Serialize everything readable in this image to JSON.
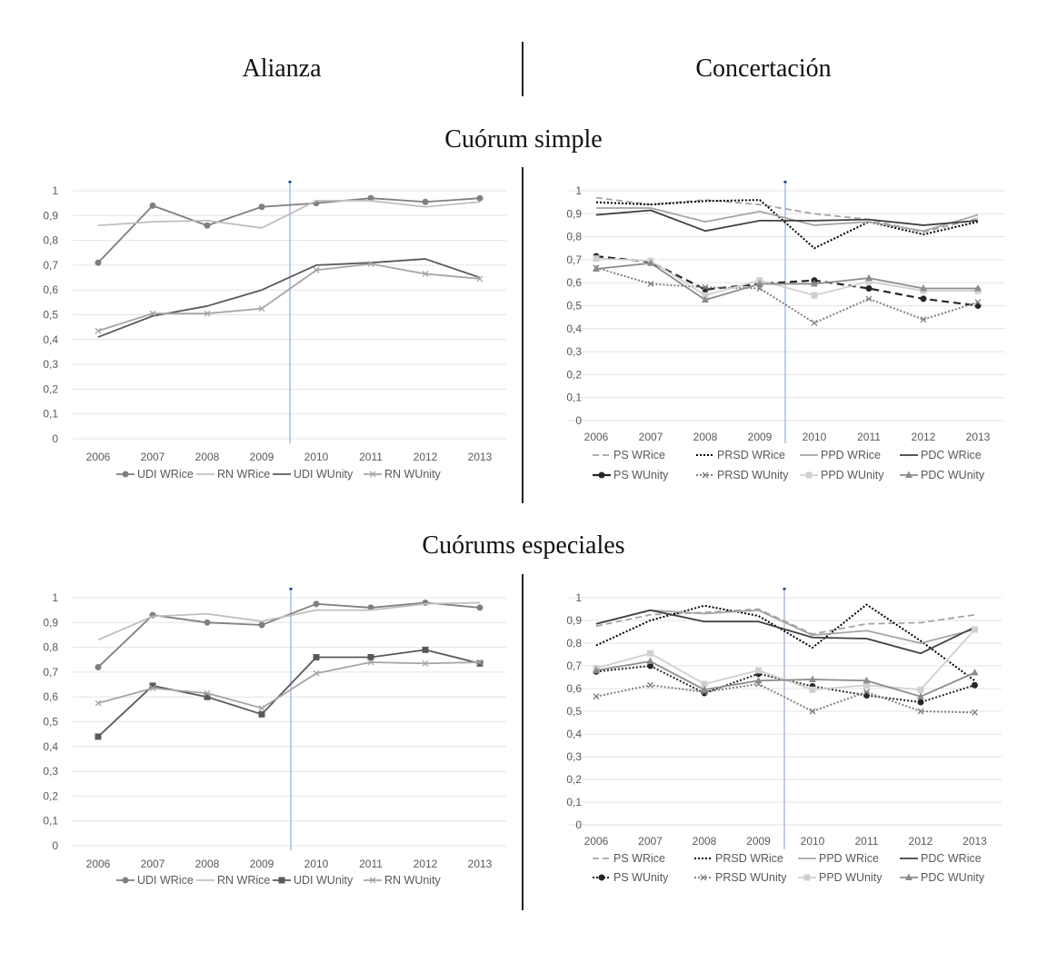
{
  "headers": {
    "left": "Alianza",
    "right": "Concertación",
    "section_top": "Cuórum simple",
    "section_bottom": "Cuórums especiales"
  },
  "chart_data": [
    {
      "id": "alianza-simple",
      "type": "line",
      "title": "Alianza — Cuórum simple",
      "xlabel": "",
      "ylabel": "",
      "categories": [
        "2006",
        "2007",
        "2008",
        "2009",
        "2010",
        "2011",
        "2012",
        "2013"
      ],
      "yticks": [
        "0",
        "0,1",
        "0,2",
        "0,3",
        "0,4",
        "0,5",
        "0,6",
        "0,7",
        "0,8",
        "0,9",
        "1"
      ],
      "ylim": [
        0,
        1
      ],
      "grid": true,
      "legend": "bottom",
      "reference_line_between": [
        "2009",
        "2010"
      ],
      "series": [
        {
          "name": "UDI WRice",
          "style": "solid",
          "color": "#7f7f7f",
          "marker": "circle",
          "values": [
            0.71,
            0.94,
            0.86,
            0.935,
            0.95,
            0.97,
            0.955,
            0.97
          ]
        },
        {
          "name": "RN WRice",
          "style": "solid",
          "color": "#bfbfbf",
          "marker": "none",
          "values": [
            0.86,
            0.875,
            0.88,
            0.85,
            0.96,
            0.96,
            0.935,
            0.955
          ]
        },
        {
          "name": "UDI WUnity",
          "style": "solid",
          "color": "#595959",
          "marker": "none",
          "values": [
            0.41,
            0.495,
            0.535,
            0.6,
            0.7,
            0.71,
            0.725,
            0.65
          ]
        },
        {
          "name": "RN WUnity",
          "style": "solid",
          "color": "#a5a5a5",
          "marker": "x",
          "values": [
            0.435,
            0.505,
            0.505,
            0.525,
            0.68,
            0.705,
            0.665,
            0.645
          ]
        }
      ]
    },
    {
      "id": "concertacion-simple",
      "type": "line",
      "title": "Concertación — Cuórum simple",
      "xlabel": "",
      "ylabel": "",
      "categories": [
        "2006",
        "2007",
        "2008",
        "2009",
        "2010",
        "2011",
        "2012",
        "2013"
      ],
      "yticks": [
        "0",
        "0,1",
        "0,2",
        "0,3",
        "0,4",
        "0,5",
        "0,6",
        "0,7",
        "0,8",
        "0,9",
        "1"
      ],
      "ylim": [
        0,
        1
      ],
      "grid": true,
      "legend": "bottom",
      "reference_line_between": [
        "2009",
        "2010"
      ],
      "series": [
        {
          "name": "PS WRice",
          "style": "dashed",
          "color": "#a5a5a5",
          "marker": "none",
          "values": [
            0.97,
            0.94,
            0.96,
            0.94,
            0.9,
            0.875,
            0.82,
            0.88
          ]
        },
        {
          "name": "PRSD WRice",
          "style": "dotted",
          "color": "#000000",
          "marker": "none",
          "values": [
            0.95,
            0.94,
            0.955,
            0.96,
            0.75,
            0.865,
            0.81,
            0.865
          ]
        },
        {
          "name": "PPD WRice",
          "style": "solid",
          "color": "#a5a5a5",
          "marker": "none",
          "values": [
            0.925,
            0.925,
            0.865,
            0.91,
            0.85,
            0.865,
            0.825,
            0.895
          ]
        },
        {
          "name": "PDC WRice",
          "style": "solid",
          "color": "#404040",
          "marker": "none",
          "values": [
            0.895,
            0.915,
            0.825,
            0.87,
            0.87,
            0.875,
            0.85,
            0.87
          ]
        },
        {
          "name": "PS WUnity",
          "style": "dashed-heavy",
          "color": "#262626",
          "marker": "circle",
          "values": [
            0.715,
            0.69,
            0.57,
            0.595,
            0.61,
            0.575,
            0.53,
            0.5
          ]
        },
        {
          "name": "PRSD WUnity",
          "style": "dotted",
          "color": "#7f7f7f",
          "marker": "x",
          "values": [
            0.665,
            0.595,
            0.58,
            0.575,
            0.425,
            0.53,
            0.44,
            0.515
          ]
        },
        {
          "name": "PPD WUnity",
          "style": "solid",
          "color": "#d0d0d0",
          "marker": "square",
          "values": [
            0.705,
            0.695,
            0.545,
            0.61,
            0.545,
            0.605,
            0.565,
            0.565
          ]
        },
        {
          "name": "PDC WUnity",
          "style": "solid",
          "color": "#8c8c8c",
          "marker": "triangle",
          "values": [
            0.66,
            0.685,
            0.525,
            0.595,
            0.595,
            0.62,
            0.575,
            0.575
          ]
        }
      ]
    },
    {
      "id": "alianza-especiales",
      "type": "line",
      "title": "Alianza — Cuórums especiales",
      "xlabel": "",
      "ylabel": "",
      "categories": [
        "2006",
        "2007",
        "2008",
        "2009",
        "2010",
        "2011",
        "2012",
        "2013"
      ],
      "yticks": [
        "0",
        "0,1",
        "0,2",
        "0,3",
        "0,4",
        "0,5",
        "0,6",
        "0,7",
        "0,8",
        "0,9",
        "1"
      ],
      "ylim": [
        0,
        1
      ],
      "grid": true,
      "legend": "bottom",
      "reference_line_between": [
        "2009",
        "2010"
      ],
      "series": [
        {
          "name": "UDI WRice",
          "style": "solid",
          "color": "#7f7f7f",
          "marker": "circle",
          "values": [
            0.72,
            0.93,
            0.9,
            0.89,
            0.975,
            0.96,
            0.98,
            0.96
          ]
        },
        {
          "name": "RN WRice",
          "style": "solid",
          "color": "#bfbfbf",
          "marker": "none",
          "values": [
            0.83,
            0.925,
            0.935,
            0.905,
            0.95,
            0.95,
            0.975,
            0.98
          ]
        },
        {
          "name": "UDI WUnity",
          "style": "solid",
          "color": "#595959",
          "marker": "square",
          "values": [
            0.44,
            0.645,
            0.6,
            0.53,
            0.76,
            0.76,
            0.79,
            0.735
          ]
        },
        {
          "name": "RN WUnity",
          "style": "solid",
          "color": "#a5a5a5",
          "marker": "x",
          "values": [
            0.575,
            0.635,
            0.615,
            0.555,
            0.695,
            0.74,
            0.735,
            0.74
          ]
        }
      ]
    },
    {
      "id": "concertacion-especiales",
      "type": "line",
      "title": "Concertación — Cuórums especiales",
      "xlabel": "",
      "ylabel": "",
      "categories": [
        "2006",
        "2007",
        "2008",
        "2009",
        "2010",
        "2011",
        "2012",
        "2013"
      ],
      "yticks": [
        "0",
        "0,1",
        "0,2",
        "0,3",
        "0,4",
        "0,5",
        "0,6",
        "0,7",
        "0,8",
        "0,9",
        "1"
      ],
      "ylim": [
        0,
        1
      ],
      "grid": true,
      "legend": "bottom",
      "reference_line_between": [
        "2009",
        "2010"
      ],
      "series": [
        {
          "name": "PS WRice",
          "style": "dashed",
          "color": "#a5a5a5",
          "marker": "none",
          "values": [
            0.875,
            0.925,
            0.935,
            0.95,
            0.84,
            0.885,
            0.89,
            0.925
          ]
        },
        {
          "name": "PRSD WRice",
          "style": "dotted",
          "color": "#000000",
          "marker": "none",
          "values": [
            0.79,
            0.9,
            0.965,
            0.92,
            0.78,
            0.97,
            0.81,
            0.635
          ]
        },
        {
          "name": "PPD WRice",
          "style": "solid",
          "color": "#a5a5a5",
          "marker": "none",
          "values": [
            0.885,
            0.945,
            0.93,
            0.945,
            0.835,
            0.855,
            0.8,
            0.86
          ]
        },
        {
          "name": "PDC WRice",
          "style": "solid",
          "color": "#404040",
          "marker": "none",
          "values": [
            0.885,
            0.945,
            0.895,
            0.895,
            0.825,
            0.82,
            0.755,
            0.87
          ]
        },
        {
          "name": "PS WUnity",
          "style": "dotted",
          "color": "#262626",
          "marker": "circle",
          "values": [
            0.675,
            0.7,
            0.58,
            0.665,
            0.61,
            0.57,
            0.54,
            0.615
          ]
        },
        {
          "name": "PRSD WUnity",
          "style": "dotted",
          "color": "#7f7f7f",
          "marker": "x",
          "values": [
            0.565,
            0.615,
            0.585,
            0.62,
            0.5,
            0.585,
            0.5,
            0.495
          ]
        },
        {
          "name": "PPD WUnity",
          "style": "solid",
          "color": "#d0d0d0",
          "marker": "square",
          "values": [
            0.69,
            0.755,
            0.62,
            0.68,
            0.595,
            0.615,
            0.595,
            0.86
          ]
        },
        {
          "name": "PDC WUnity",
          "style": "solid",
          "color": "#8c8c8c",
          "marker": "triangle",
          "values": [
            0.68,
            0.72,
            0.595,
            0.635,
            0.64,
            0.635,
            0.565,
            0.67
          ]
        }
      ]
    }
  ]
}
